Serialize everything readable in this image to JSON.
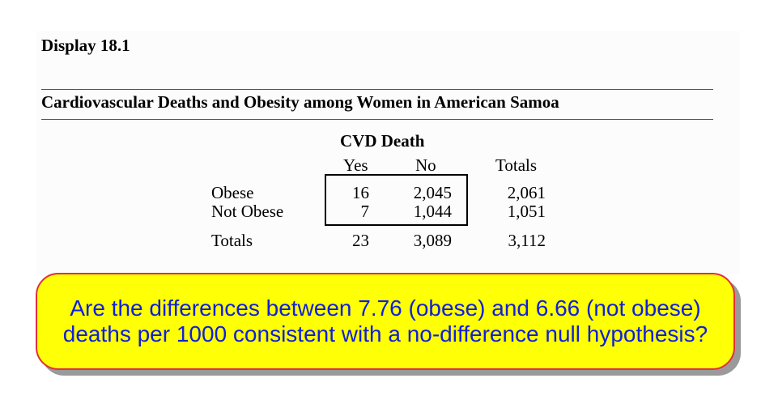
{
  "display_label": "Display 18.1",
  "table_title": "Cardiovascular Deaths and Obesity among Women in American Samoa",
  "column_group_header": "CVD Death",
  "column_headers": {
    "yes": "Yes",
    "no": "No",
    "totals": "Totals"
  },
  "rows": [
    {
      "label": "Obese",
      "yes": "16",
      "no": "2,045",
      "totals": "2,061"
    },
    {
      "label": "Not Obese",
      "yes": "7",
      "no": "1,044",
      "totals": "1,051"
    }
  ],
  "totals_row": {
    "label": "Totals",
    "yes": "23",
    "no": "3,089",
    "totals": "3,112"
  },
  "callout": {
    "text": "Are the differences between 7.76 (obese) and 6.66 (not obese) deaths per 1000 consistent with a no-difference null hypothesis?",
    "background_color": "#ffff05",
    "border_color": "#e0303c",
    "text_color": "#1020d8"
  }
}
